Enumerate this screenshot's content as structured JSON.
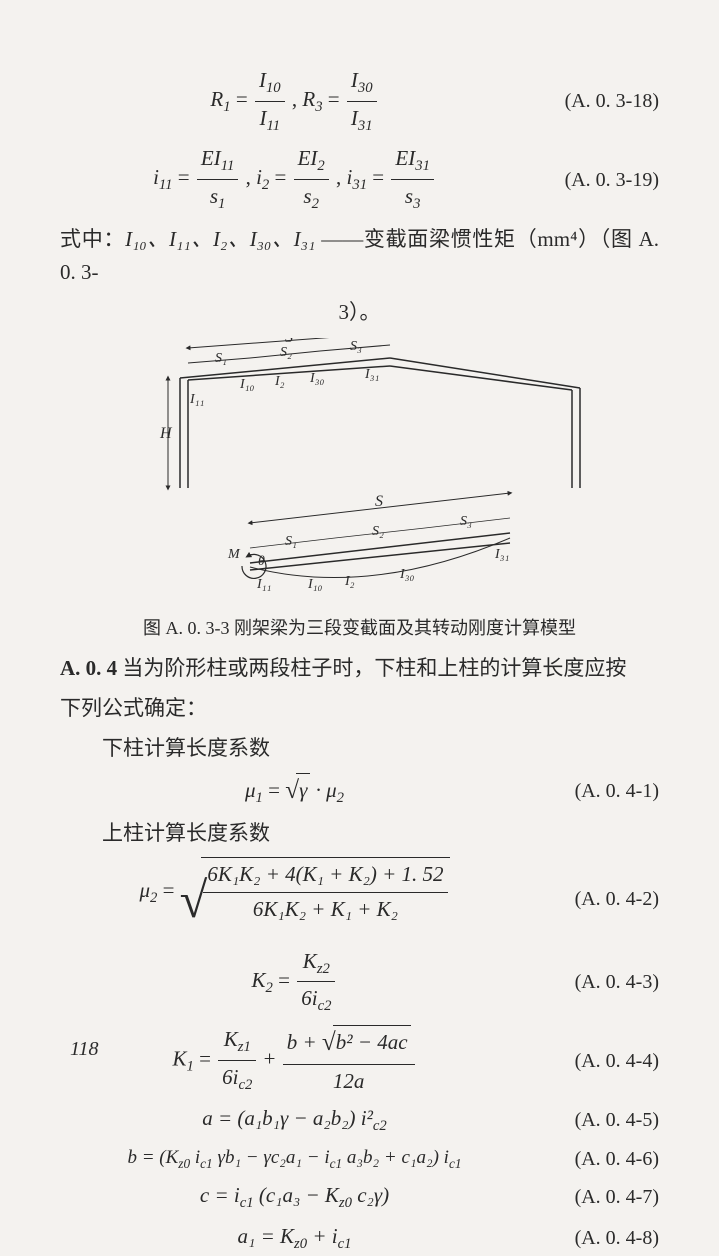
{
  "eq18": {
    "label": "(A. 0. 3-18)",
    "lhs1": "R",
    "lhs1sub": "1",
    "num1": "I",
    "num1sub": "10",
    "den1": "I",
    "den1sub": "11",
    "lhs2": "R",
    "lhs2sub": "3",
    "num2": "I",
    "num2sub": "30",
    "den2": "I",
    "den2sub": "31"
  },
  "eq19": {
    "label": "(A. 0. 3-19)",
    "t1": "i",
    "t1s": "11",
    "n1": "EI",
    "n1s": "11",
    "d1": "s",
    "d1s": "1",
    "t2": "i",
    "t2s": "2",
    "n2": "EI",
    "n2s": "2",
    "d2": "s",
    "d2s": "2",
    "t3": "i",
    "t3s": "31",
    "n3": "EI",
    "n3s": "31",
    "d3": "s",
    "d3s": "3"
  },
  "whereLine": {
    "prefix": "式中：",
    "symbols": "I₁₀、I₁₁、I₂、I₃₀、I₃₁",
    "dash": " ——",
    "desc1": "变截面梁惯性矩（mm⁴）（图 A. 0. 3-",
    "desc2": "3）。"
  },
  "fig": {
    "S": "S",
    "S1": "S₁",
    "S2": "S₂",
    "S3": "S₃",
    "I10": "I₁₀",
    "I11": "I₁₁",
    "I2": "I₂",
    "I30": "I₃₀",
    "I31": "I₃₁",
    "H": "H",
    "M": "M",
    "theta": "θ"
  },
  "figCaption": "图 A. 0. 3-3  刚架梁为三段变截面及其转动刚度计算模型",
  "sectionA04": {
    "head": "A. 0. 4",
    "textA": "  当为阶形柱或两段柱子时，下柱和上柱的计算长度应按",
    "textB": "下列公式确定：",
    "lower": "下柱计算长度系数",
    "upper": "上柱计算长度系数"
  },
  "eq41": {
    "label": "(A. 0. 4-1)",
    "mu": "μ",
    "sub1": "1",
    "gamma": "γ",
    "dot": " · ",
    "sub2": "2"
  },
  "eq42": {
    "label": "(A. 0. 4-2)",
    "mu": "μ",
    "sub": "2",
    "num": "6K₁K₂ + 4(K₁ + K₂) + 1. 52",
    "den": "6K₁K₂ + K₁ + K₂"
  },
  "eq43": {
    "label": "(A. 0. 4-3)",
    "lhs": "K",
    "lhsSub": "2",
    "num": "K",
    "numSub": "z2",
    "den": "6i",
    "denSub": "c2"
  },
  "eq44": {
    "label": "(A. 0. 4-4)",
    "lhs": "K",
    "lhsSub": "1",
    "t1n": "K",
    "t1nSub": "z1",
    "t1d": "6i",
    "t1dSub": "c2",
    "t2nA": "b + ",
    "t2nB": "b² − 4ac",
    "t2d": "12a"
  },
  "eq45": {
    "label": "(A. 0. 4-5)",
    "body": "a = (a₁b₁γ − a₂b₂) i²_c2_"
  },
  "eq46": {
    "label": "(A. 0. 4-6)",
    "body": "b = (K_z0_ i_c1_ γb₁ − γc₂a₁ − i_c1_ a₃b₂ + c₁a₂) i_c1_"
  },
  "eq47": {
    "label": "(A. 0. 4-7)",
    "body": "c = i_c1_ (c₁a₃ − K_z0_ c₂γ)"
  },
  "eq48": {
    "label": "(A. 0. 4-8)",
    "body": "a₁ = K_z0_ + i_c1_"
  },
  "pagenum": "118"
}
